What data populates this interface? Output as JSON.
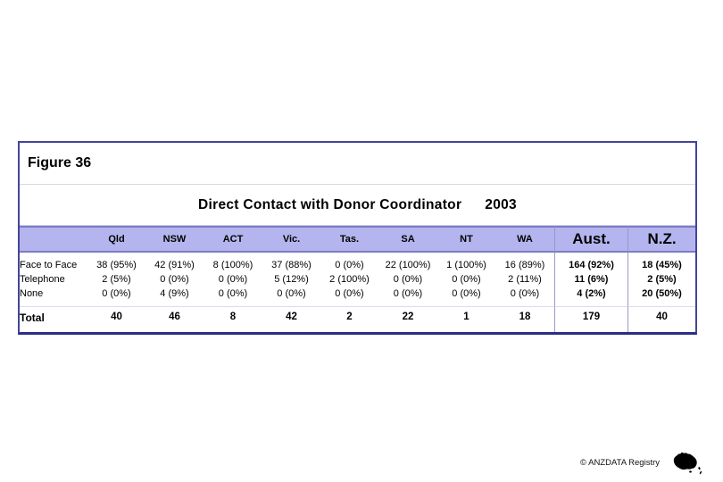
{
  "slide": {
    "background": "#ffffff"
  },
  "figure": {
    "label": "Figure 36"
  },
  "chart_data": {
    "type": "table",
    "title": "Direct Contact with Donor Coordinator",
    "year": "2003",
    "columns": [
      "Qld",
      "NSW",
      "ACT",
      "Vic.",
      "Tas.",
      "SA",
      "NT",
      "WA",
      "Aust.",
      "N.Z."
    ],
    "rows": [
      {
        "label": "Face to Face",
        "values": [
          "38 (95%)",
          "42 (91%)",
          "8 (100%)",
          "37 (88%)",
          "0 (0%)",
          "22 (100%)",
          "1 (100%)",
          "16 (89%)",
          "164 (92%)",
          "18 (45%)"
        ]
      },
      {
        "label": "Telephone",
        "values": [
          "2 (5%)",
          "0 (0%)",
          "0 (0%)",
          "5 (12%)",
          "2 (100%)",
          "0 (0%)",
          "0 (0%)",
          "2 (11%)",
          "11 (6%)",
          "2 (5%)"
        ]
      },
      {
        "label": "None",
        "values": [
          "0 (0%)",
          "4 (9%)",
          "0 (0%)",
          "0 (0%)",
          "0 (0%)",
          "0 (0%)",
          "0 (0%)",
          "0 (0%)",
          "4 (2%)",
          "20 (50%)"
        ]
      }
    ],
    "total_row": {
      "label": "Total",
      "values": [
        "40",
        "46",
        "8",
        "42",
        "2",
        "22",
        "1",
        "18",
        "179",
        "40"
      ]
    },
    "emphasized_columns": [
      "Aust.",
      "N.Z."
    ],
    "legend_position": "none",
    "grid_lines": "column separators before Aust. and N.Z. only"
  },
  "footer": {
    "credit": "© ANZDATA Registry",
    "logo": "australia-nz-map-icon"
  },
  "colors": {
    "band_fill": "#b4b4ee",
    "band_border": "#7b7bc4",
    "box_border": "#44449a",
    "box_border_bottom": "#2d2d85",
    "column_separator": "#9898ce",
    "figure_divider": "#d9d9d9",
    "title_divider": "#c9c9e4",
    "total_divider": "#dcdcec",
    "text": "#000000"
  }
}
